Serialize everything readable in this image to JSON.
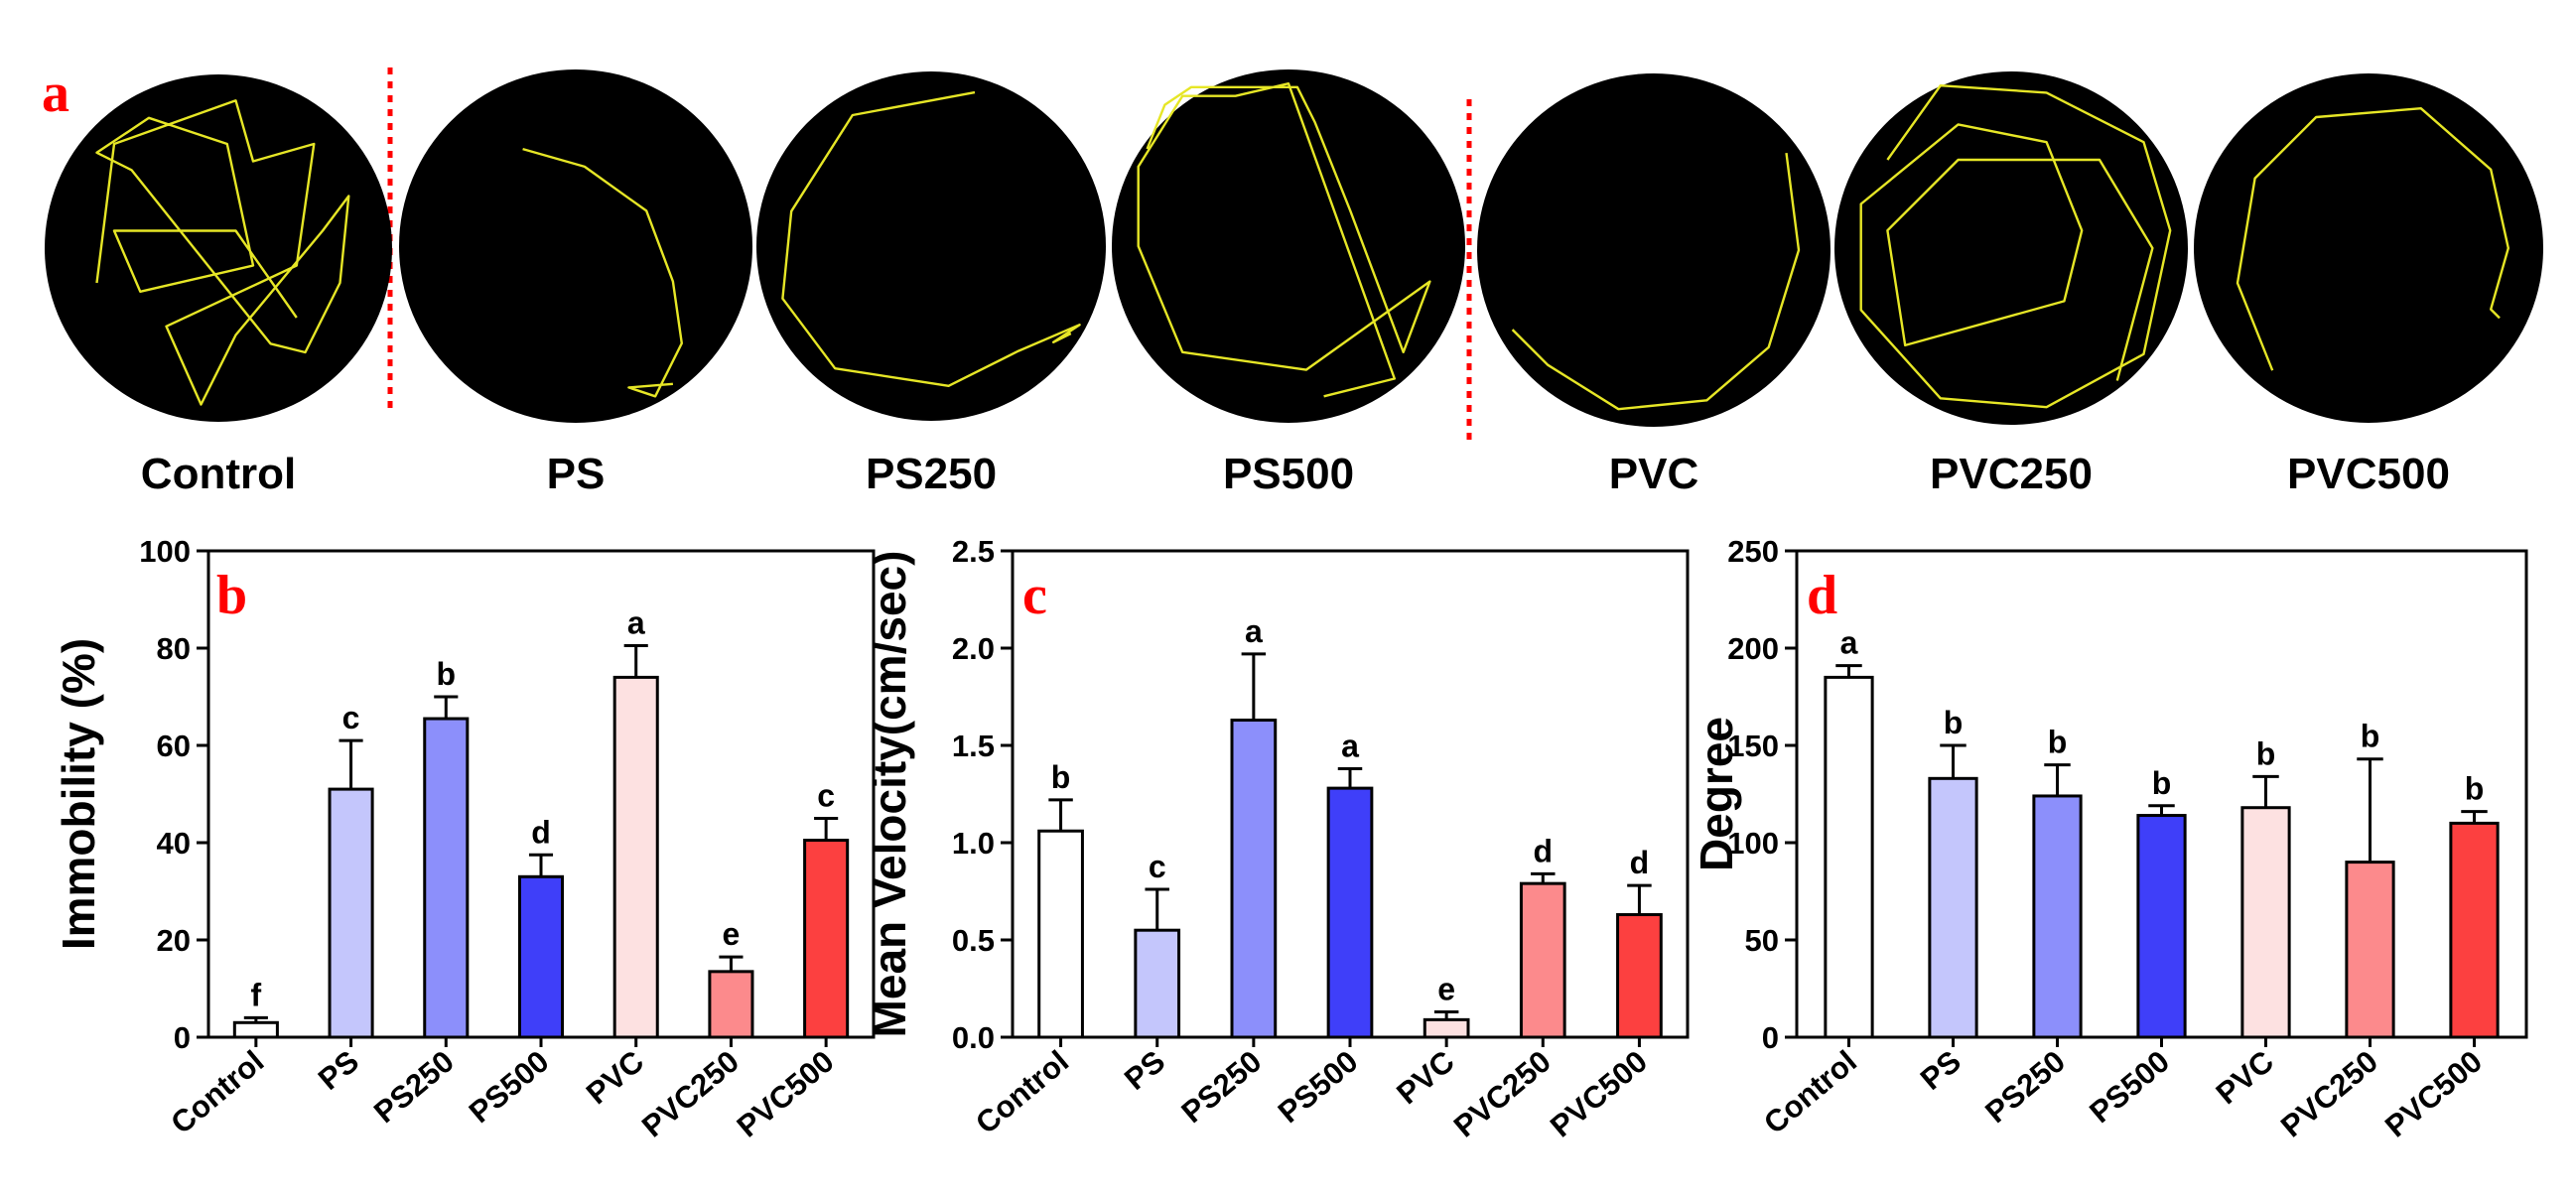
{
  "panel_a": {
    "letter": "a",
    "arenas": [
      {
        "label": "Control"
      },
      {
        "label": "PS"
      },
      {
        "label": "PS250"
      },
      {
        "label": "PS500"
      },
      {
        "label": "PVC"
      },
      {
        "label": "PVC250"
      },
      {
        "label": "PVC500"
      }
    ]
  },
  "colors": {
    "Control": "#ffffff",
    "PS": "#c4c6fc",
    "PS250": "#8c8ffb",
    "PS500": "#3f3ff9",
    "PVC": "#fde1e1",
    "PVC250": "#fc8a8c",
    "PVC500": "#fc4040",
    "trajectory": "#e6e626",
    "arena": "#000000",
    "divider": "#ff0000",
    "panel_letter": "#ff0000"
  },
  "chart_data": [
    {
      "type": "bar",
      "panel": "b",
      "categories": [
        "Control",
        "PS",
        "PS250",
        "PS500",
        "PVC",
        "PVC250",
        "PVC500"
      ],
      "values": [
        3,
        51,
        65.5,
        33,
        74,
        13.5,
        40.5
      ],
      "errors": [
        1,
        10,
        4.5,
        4.5,
        6.5,
        3,
        4.5
      ],
      "significance": [
        "f",
        "c",
        "b",
        "d",
        "a",
        "e",
        "c"
      ],
      "ylabel": "Immobility (%)",
      "ylim": [
        0,
        100
      ],
      "yticks": [
        "0",
        "20",
        "40",
        "60",
        "80",
        "100"
      ],
      "ytick_values": [
        0,
        20,
        40,
        60,
        80,
        100
      ]
    },
    {
      "type": "bar",
      "panel": "c",
      "categories": [
        "Control",
        "PS",
        "PS250",
        "PS500",
        "PVC",
        "PVC250",
        "PVC500"
      ],
      "values": [
        1.06,
        0.55,
        1.63,
        1.28,
        0.09,
        0.79,
        0.63
      ],
      "errors": [
        0.16,
        0.21,
        0.34,
        0.1,
        0.04,
        0.05,
        0.15
      ],
      "significance": [
        "b",
        "c",
        "a",
        "a",
        "e",
        "d",
        "d"
      ],
      "ylabel": "Mean Velocity(cm/sec)",
      "ylim": [
        0,
        2.5
      ],
      "yticks": [
        "0.0",
        "0.5",
        "1.0",
        "1.5",
        "2.0",
        "2.5"
      ],
      "ytick_values": [
        0,
        0.5,
        1.0,
        1.5,
        2.0,
        2.5
      ]
    },
    {
      "type": "bar",
      "panel": "d",
      "categories": [
        "Control",
        "PS",
        "PS250",
        "PS500",
        "PVC",
        "PVC250",
        "PVC500"
      ],
      "values": [
        185,
        133,
        124,
        114,
        118,
        90,
        110
      ],
      "errors": [
        6,
        17,
        16,
        5,
        16,
        53,
        6
      ],
      "significance": [
        "a",
        "b",
        "b",
        "b",
        "b",
        "b",
        "b"
      ],
      "ylabel": "Degree",
      "ylim": [
        0,
        250
      ],
      "yticks": [
        "0",
        "50",
        "100",
        "150",
        "200",
        "250"
      ],
      "ytick_values": [
        0,
        50,
        100,
        150,
        200,
        250
      ]
    }
  ]
}
